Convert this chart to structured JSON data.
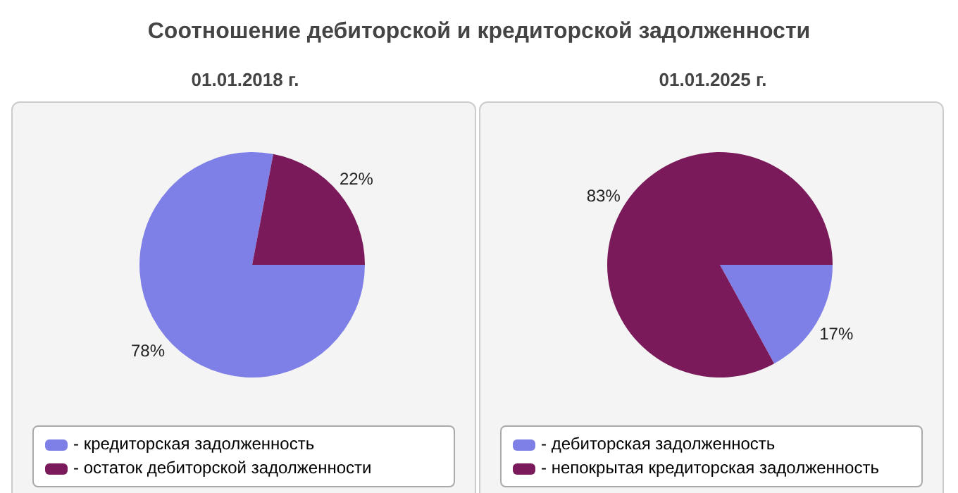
{
  "chart_data": [
    {
      "type": "pie",
      "title": "Соотношение дебиторской и кредиторской задолженности",
      "subtitle": "01.01.2018 г.",
      "categories": [
        "- кредиторская задолженность",
        "- остаток дебиторской задолженности"
      ],
      "values": [
        78,
        22
      ],
      "colors": [
        "#7f7fe8",
        "#7a1a5a"
      ],
      "value_labels": [
        "78%",
        "22%"
      ],
      "legend": "bottom"
    },
    {
      "type": "pie",
      "subtitle": "01.01.2025 г.",
      "categories": [
        "- дебиторская задолженность",
        "- непокрытая кредиторская задолженность"
      ],
      "values": [
        17,
        83
      ],
      "colors": [
        "#7f7fe8",
        "#7a1a5a"
      ],
      "value_labels": [
        "17%",
        "83%"
      ],
      "legend": "bottom"
    }
  ]
}
